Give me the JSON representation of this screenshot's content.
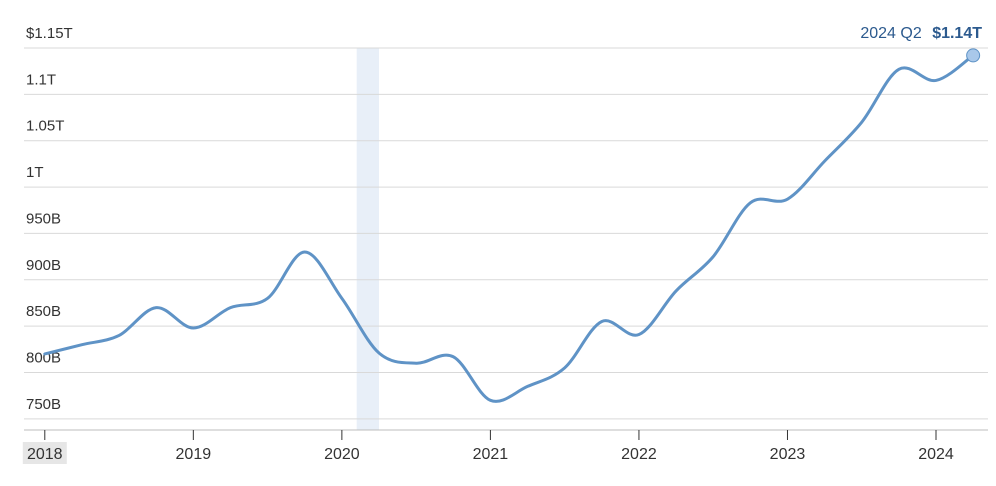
{
  "chart_data": {
    "type": "line",
    "y_tick_labels": [
      "750B",
      "800B",
      "850B",
      "900B",
      "950B",
      "1T",
      "1.05T",
      "1.1T",
      "$1.15T"
    ],
    "y_ticks": [
      750,
      800,
      850,
      900,
      950,
      1000,
      1050,
      1100,
      1150
    ],
    "ylim": [
      738,
      1150
    ],
    "y_unit": "billions of dollars",
    "x_tick_labels": [
      "2018",
      "2019",
      "2020",
      "2021",
      "2022",
      "2023",
      "2024"
    ],
    "x_ticks": [
      2018,
      2019,
      2020,
      2021,
      2022,
      2023,
      2024
    ],
    "xlim": [
      2017.86,
      2024.35
    ],
    "highlighted_x_tick": "2018",
    "shaded_period": [
      2020.1,
      2020.25
    ],
    "series": [
      {
        "x": [
          2018.0,
          2018.25,
          2018.5,
          2018.75,
          2019.0,
          2019.25,
          2019.5,
          2019.75,
          2020.0,
          2020.25,
          2020.5,
          2020.75,
          2021.0,
          2021.25,
          2021.5,
          2021.75,
          2022.0,
          2022.25,
          2022.5,
          2022.75,
          2023.0,
          2023.25,
          2023.5,
          2023.75,
          2024.0,
          2024.25
        ],
        "y": [
          820,
          830,
          840,
          870,
          848,
          870,
          880,
          930,
          880,
          821,
          810,
          817,
          770,
          785,
          805,
          855,
          841,
          888,
          925,
          983,
          987,
          1028,
          1070,
          1127,
          1115,
          1142
        ]
      }
    ],
    "annotation": {
      "label": "2024 Q2",
      "value": "$1.14T"
    },
    "colors": {
      "line": "#5f93c6",
      "marker": "#a9c8ea",
      "shade": "#e8eff8",
      "grid": "#d9d9d9",
      "annotation": "#2c5a8e",
      "highlight": "#e6e6e6"
    },
    "grid": true,
    "legend": "none"
  }
}
